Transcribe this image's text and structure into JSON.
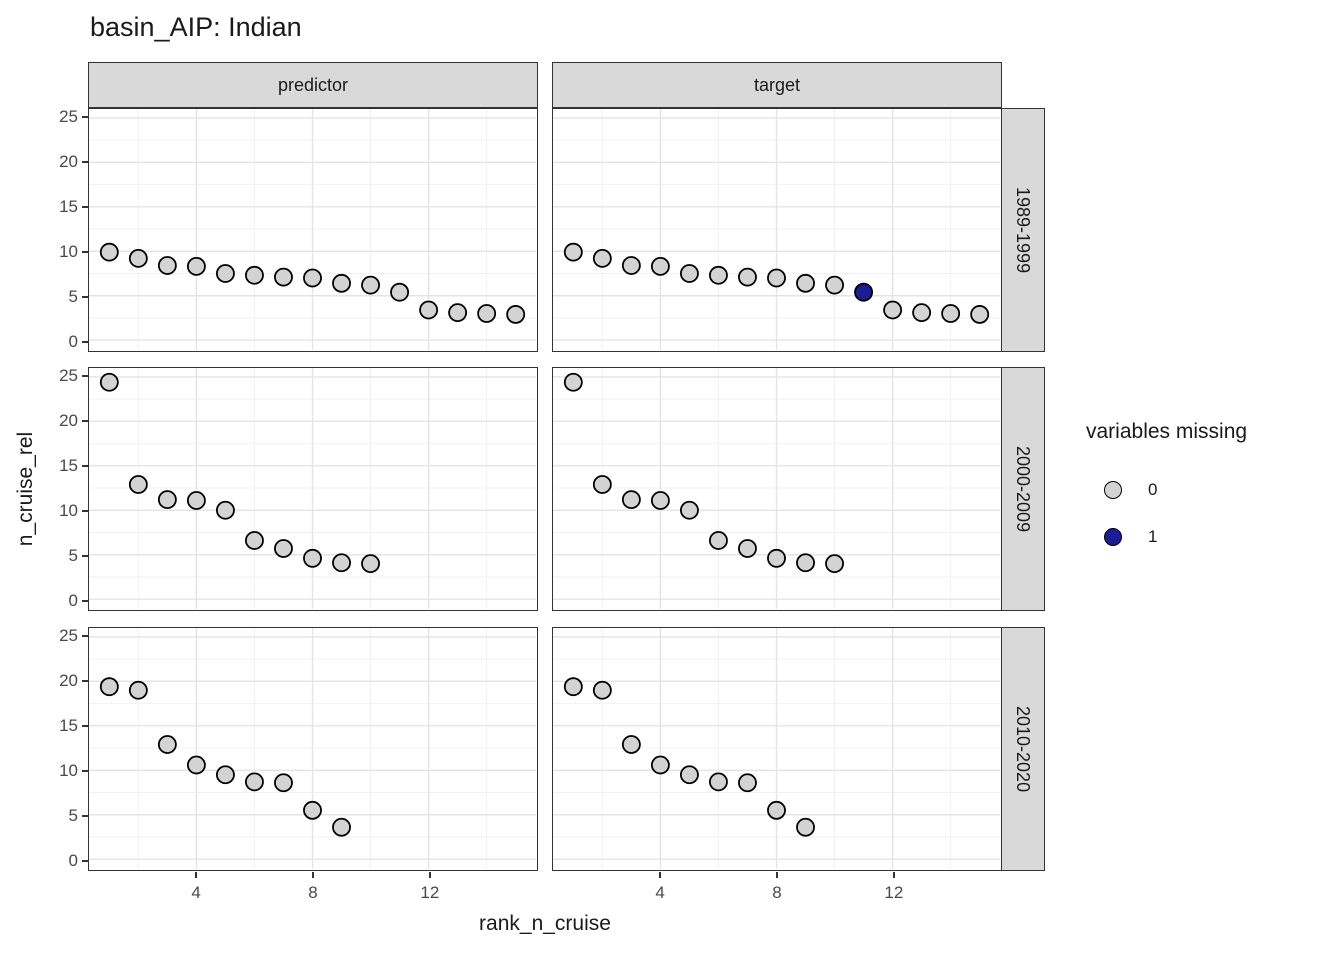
{
  "title": "basin_AIP: Indian",
  "axes": {
    "x_title": "rank_n_cruise",
    "y_title": "n_cruise_rel",
    "x_ticks": [
      4,
      8,
      12
    ],
    "y_ticks": [
      25,
      20,
      15,
      10,
      5,
      0
    ]
  },
  "facets": {
    "columns": [
      "predictor",
      "target"
    ],
    "rows": [
      "1989-1999",
      "2000-2009",
      "2010-2020"
    ]
  },
  "legend": {
    "title": "variables missing",
    "items": [
      {
        "label": "0",
        "color": "#d3d3d3"
      },
      {
        "label": "1",
        "color": "#1c1c96"
      }
    ]
  },
  "colors": {
    "point_fill_present": "#d3d3d3",
    "point_fill_missing": "#1c1c96",
    "point_stroke": "#000000",
    "strip_fill": "#d9d9d9",
    "panel_border": "#333333",
    "grid_major": "#e4e4e4",
    "grid_minor": "#f2f2f2",
    "tick_label": "#4a4a4a"
  },
  "chart_data": {
    "type": "scatter",
    "title": "basin_AIP: Indian",
    "xlabel": "rank_n_cruise",
    "ylabel": "n_cruise_rel",
    "legend_title": "variables missing",
    "legend_entries": [
      "0",
      "1"
    ],
    "legend_position": "right",
    "grid": true,
    "xlim": [
      0.3,
      15.7
    ],
    "ylim": [
      -1.1,
      26.0
    ],
    "x_major": [
      4,
      8,
      12
    ],
    "x_minor": [
      2,
      6,
      10,
      14
    ],
    "y_major": [
      0,
      5,
      10,
      15,
      20,
      25
    ],
    "y_minor": [
      2.5,
      7.5,
      12.5,
      17.5,
      22.5
    ],
    "point_note": "points encoded as [rank_n_cruise, n_cruise_rel, variables_missing]",
    "panels": [
      {
        "col": "predictor",
        "row": "1989-1999",
        "points": [
          [
            1,
            9.9,
            0
          ],
          [
            2,
            9.2,
            0
          ],
          [
            3,
            8.4,
            0
          ],
          [
            4,
            8.3,
            0
          ],
          [
            5,
            7.5,
            0
          ],
          [
            6,
            7.3,
            0
          ],
          [
            7,
            7.1,
            0
          ],
          [
            8,
            7.0,
            0
          ],
          [
            9,
            6.4,
            0
          ],
          [
            10,
            6.2,
            0
          ],
          [
            11,
            5.4,
            0
          ],
          [
            12,
            3.4,
            0
          ],
          [
            13,
            3.1,
            0
          ],
          [
            14,
            3.0,
            0
          ],
          [
            15,
            2.9,
            0
          ]
        ]
      },
      {
        "col": "target",
        "row": "1989-1999",
        "points": [
          [
            1,
            9.9,
            0
          ],
          [
            2,
            9.2,
            0
          ],
          [
            3,
            8.4,
            0
          ],
          [
            4,
            8.3,
            0
          ],
          [
            5,
            7.5,
            0
          ],
          [
            6,
            7.3,
            0
          ],
          [
            7,
            7.1,
            0
          ],
          [
            8,
            7.0,
            0
          ],
          [
            9,
            6.4,
            0
          ],
          [
            10,
            6.2,
            0
          ],
          [
            11,
            5.4,
            1
          ],
          [
            12,
            3.4,
            0
          ],
          [
            13,
            3.1,
            0
          ],
          [
            14,
            3.0,
            0
          ],
          [
            15,
            2.9,
            0
          ]
        ]
      },
      {
        "col": "predictor",
        "row": "2000-2009",
        "points": [
          [
            1,
            24.4,
            0
          ],
          [
            2,
            12.9,
            0
          ],
          [
            3,
            11.2,
            0
          ],
          [
            4,
            11.1,
            0
          ],
          [
            5,
            10.0,
            0
          ],
          [
            6,
            6.6,
            0
          ],
          [
            7,
            5.7,
            0
          ],
          [
            8,
            4.6,
            0
          ],
          [
            9,
            4.1,
            0
          ],
          [
            10,
            4.0,
            0
          ]
        ]
      },
      {
        "col": "target",
        "row": "2000-2009",
        "points": [
          [
            1,
            24.4,
            0
          ],
          [
            2,
            12.9,
            0
          ],
          [
            3,
            11.2,
            0
          ],
          [
            4,
            11.1,
            0
          ],
          [
            5,
            10.0,
            0
          ],
          [
            6,
            6.6,
            0
          ],
          [
            7,
            5.7,
            0
          ],
          [
            8,
            4.6,
            0
          ],
          [
            9,
            4.1,
            0
          ],
          [
            10,
            4.0,
            0
          ]
        ]
      },
      {
        "col": "predictor",
        "row": "2010-2020",
        "points": [
          [
            1,
            19.4,
            0
          ],
          [
            2,
            19.0,
            0
          ],
          [
            3,
            12.9,
            0
          ],
          [
            4,
            10.6,
            0
          ],
          [
            5,
            9.5,
            0
          ],
          [
            6,
            8.7,
            0
          ],
          [
            7,
            8.6,
            0
          ],
          [
            8,
            5.5,
            0
          ],
          [
            9,
            3.6,
            0
          ]
        ]
      },
      {
        "col": "target",
        "row": "2010-2020",
        "points": [
          [
            1,
            19.4,
            0
          ],
          [
            2,
            19.0,
            0
          ],
          [
            3,
            12.9,
            0
          ],
          [
            4,
            10.6,
            0
          ],
          [
            5,
            9.5,
            0
          ],
          [
            6,
            8.7,
            0
          ],
          [
            7,
            8.6,
            0
          ],
          [
            8,
            5.5,
            0
          ],
          [
            9,
            3.6,
            0
          ]
        ]
      }
    ]
  }
}
